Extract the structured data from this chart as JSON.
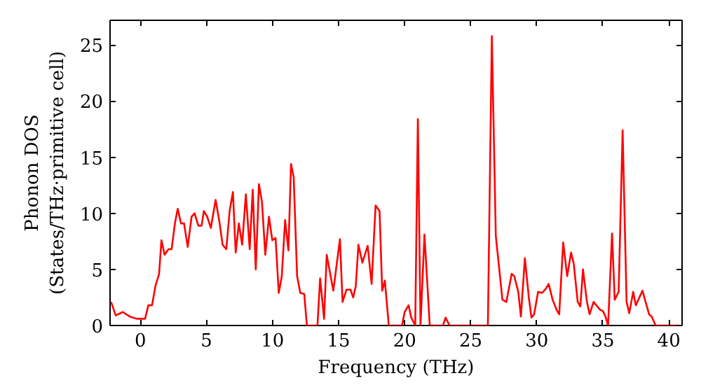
{
  "chart_data": {
    "type": "line",
    "xlabel": "Frequency (THz)",
    "ylabel": "Phonon DOS\n(States/THz·primitive cell)",
    "xlim": [
      -2.3,
      41
    ],
    "ylim": [
      0,
      27.2
    ],
    "xticks": [
      0,
      5,
      10,
      15,
      20,
      25,
      30,
      35,
      40
    ],
    "yticks": [
      0,
      5,
      10,
      15,
      20,
      25
    ],
    "grid": false,
    "series": [
      {
        "color": "#ff0000",
        "x": [
          -2.22,
          -1.87,
          -1.34,
          -0.81,
          -0.28,
          0.35,
          0.6,
          0.88,
          1.13,
          1.41,
          1.59,
          1.83,
          2.12,
          2.36,
          2.61,
          2.82,
          3.07,
          3.3,
          3.58,
          3.87,
          4.1,
          4.38,
          4.63,
          4.8,
          5.05,
          5.33,
          5.69,
          5.97,
          6.22,
          6.5,
          6.75,
          7.0,
          7.21,
          7.45,
          7.7,
          7.98,
          8.27,
          8.5,
          8.73,
          8.97,
          9.2,
          9.45,
          9.73,
          9.98,
          10.23,
          10.47,
          10.7,
          10.95,
          11.2,
          11.4,
          11.6,
          11.86,
          12.1,
          12.4,
          12.6,
          13.4,
          13.6,
          13.9,
          14.1,
          14.6,
          15.1,
          15.3,
          15.6,
          15.9,
          16.1,
          16.3,
          16.5,
          16.8,
          17.2,
          17.5,
          17.8,
          18.1,
          18.3,
          18.5,
          18.8,
          19.8,
          20.0,
          20.3,
          20.5,
          20.8,
          21.0,
          21.2,
          21.5,
          21.9,
          22.9,
          23.1,
          23.4,
          26.3,
          26.6,
          26.9,
          27.4,
          27.7,
          28.1,
          28.3,
          28.6,
          28.8,
          29.1,
          29.4,
          29.6,
          29.8,
          30.1,
          30.4,
          30.7,
          30.9,
          31.2,
          31.5,
          31.7,
          32.0,
          32.3,
          32.6,
          32.8,
          33.1,
          33.3,
          33.5,
          33.8,
          34.0,
          34.3,
          34.8,
          35.0,
          35.2,
          35.4,
          35.7,
          35.9,
          36.2,
          36.5,
          36.8,
          37.0,
          37.3,
          37.5,
          38.0,
          38.5,
          38.7,
          39.0,
          40.7
        ],
        "values": [
          2.1,
          0.9,
          1.2,
          0.8,
          0.6,
          0.6,
          1.8,
          1.8,
          3.5,
          4.6,
          7.6,
          6.3,
          6.8,
          6.8,
          9.1,
          10.4,
          9.1,
          9.1,
          7.0,
          9.7,
          10.0,
          8.9,
          8.9,
          10.2,
          9.7,
          8.7,
          11.2,
          9.3,
          7.2,
          6.8,
          10.2,
          11.9,
          6.5,
          9.1,
          7.2,
          11.7,
          6.8,
          12.1,
          5.0,
          12.6,
          11.0,
          6.3,
          9.7,
          7.6,
          7.8,
          2.9,
          4.4,
          9.4,
          6.7,
          14.4,
          13.2,
          4.4,
          2.9,
          2.8,
          0,
          0,
          4.2,
          0.6,
          6.3,
          3.1,
          7.7,
          2.1,
          3.2,
          3.2,
          2.5,
          3.5,
          7.2,
          5.6,
          7.1,
          3.7,
          10.7,
          10.2,
          3.1,
          4.0,
          0,
          0,
          1.2,
          1.8,
          0.7,
          0,
          18.4,
          0,
          8.1,
          0,
          0,
          0.7,
          0,
          0,
          25.8,
          8.0,
          2.3,
          2.1,
          4.6,
          4.4,
          3.0,
          0.8,
          6.0,
          2.5,
          0.7,
          1.0,
          3.0,
          2.9,
          3.3,
          3.7,
          2.3,
          1.4,
          1.0,
          7.4,
          4.4,
          6.5,
          5.5,
          2.1,
          1.7,
          5.0,
          2.1,
          1.0,
          2.1,
          1.4,
          1.3,
          0.8,
          0,
          8.2,
          2.3,
          3.0,
          17.4,
          2.1,
          1.1,
          3.0,
          1.8,
          3.1,
          1.0,
          0.8,
          0,
          0
        ]
      }
    ]
  }
}
